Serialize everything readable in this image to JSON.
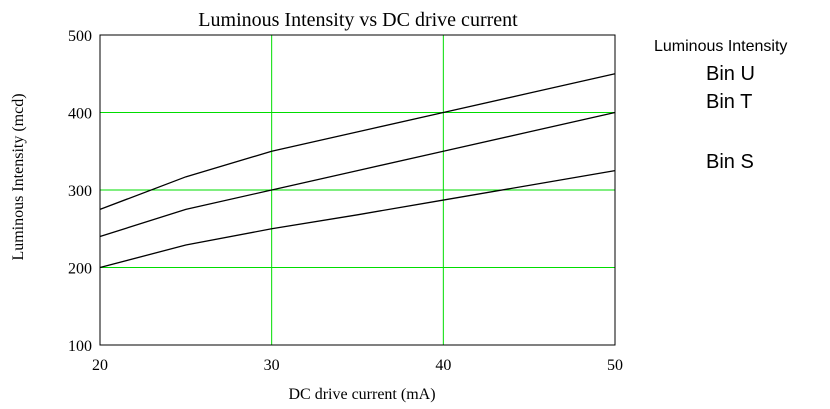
{
  "chart_data": {
    "type": "line",
    "title": "Luminous Intensity vs DC drive current",
    "xlabel": "DC drive current (mA)",
    "ylabel": "Luminous Intensity (mcd)",
    "xlim": [
      20,
      50
    ],
    "ylim": [
      100,
      500
    ],
    "x_ticks": [
      "20",
      "30",
      "40",
      "50"
    ],
    "y_ticks": [
      "100",
      "200",
      "300",
      "400",
      "500"
    ],
    "grid": true,
    "grid_color": "#00dd00",
    "line_color": "#000000",
    "legend_title": "Luminous Intensity",
    "x": [
      20,
      25,
      30,
      35,
      40,
      45,
      50
    ],
    "series": [
      {
        "name": "Bin U",
        "values": [
          275,
          317,
          350,
          375,
          400,
          425,
          450
        ]
      },
      {
        "name": "Bin T",
        "values": [
          240,
          275,
          300,
          325,
          350,
          375,
          400
        ]
      },
      {
        "name": "Bin S",
        "values": [
          200,
          229,
          250,
          268,
          287,
          306,
          325
        ]
      }
    ]
  }
}
